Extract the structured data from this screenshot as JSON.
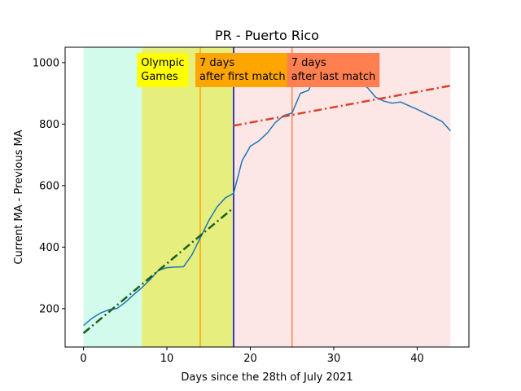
{
  "chart_data": {
    "type": "line",
    "title": "PR - Puerto Rico",
    "xlabel": "Days since the 28th of July 2021",
    "ylabel": "Current MA - Previous MA",
    "xlim": [
      -2.2,
      46.2
    ],
    "ylim": [
      75,
      1050
    ],
    "x_ticks": [
      0,
      10,
      20,
      30,
      40
    ],
    "y_ticks": [
      200,
      400,
      600,
      800,
      1000
    ],
    "grid": false,
    "series": [
      {
        "color": "#1f77b4",
        "x": [
          0,
          1,
          2,
          3,
          4,
          5,
          6,
          7,
          8,
          9,
          10,
          11,
          12,
          13,
          14,
          15,
          16,
          17,
          18,
          19,
          20,
          21,
          22,
          23,
          24,
          25,
          26,
          27,
          28,
          29,
          30,
          31,
          32,
          33,
          34,
          35,
          36,
          37,
          38,
          39,
          40,
          41,
          42,
          43,
          44
        ],
        "y": [
          145,
          168,
          185,
          196,
          200,
          220,
          245,
          268,
          295,
          325,
          333,
          335,
          336,
          375,
          430,
          485,
          530,
          560,
          575,
          680,
          728,
          745,
          770,
          805,
          828,
          836,
          900,
          910,
          978,
          1005,
          1008,
          998,
          955,
          930,
          920,
          888,
          875,
          868,
          872,
          860,
          848,
          835,
          822,
          808,
          778
        ]
      }
    ],
    "trend_lines": [
      {
        "color": "#1a5e1a",
        "style": "dash-dot",
        "x": [
          0,
          18
        ],
        "y": [
          120,
          528
        ]
      },
      {
        "color": "#d9422b",
        "style": "dash-dot",
        "x": [
          18,
          44
        ],
        "y": [
          795,
          925
        ]
      }
    ],
    "regions": [
      {
        "x": [
          0,
          7
        ],
        "color": "#d2fbeb"
      },
      {
        "x": [
          7,
          18
        ],
        "color": "#e6ee7d"
      },
      {
        "x": [
          18,
          44
        ],
        "color": "#fde6e6"
      }
    ],
    "vlines": [
      {
        "x": 14,
        "color": "#ffa500"
      },
      {
        "x": 18,
        "color": "#0000cd"
      },
      {
        "x": 25,
        "color": "#ff7f50"
      }
    ],
    "annotations": [
      {
        "lines": [
          "Olympic",
          "Games"
        ],
        "x": 7,
        "box_color": "#ffff00"
      },
      {
        "lines": [
          "7 days",
          "after first match"
        ],
        "x": 14,
        "box_color": "#ffa500"
      },
      {
        "lines": [
          "7 days",
          "after last match"
        ],
        "x": 25,
        "box_color": "#ff7f50"
      }
    ]
  }
}
